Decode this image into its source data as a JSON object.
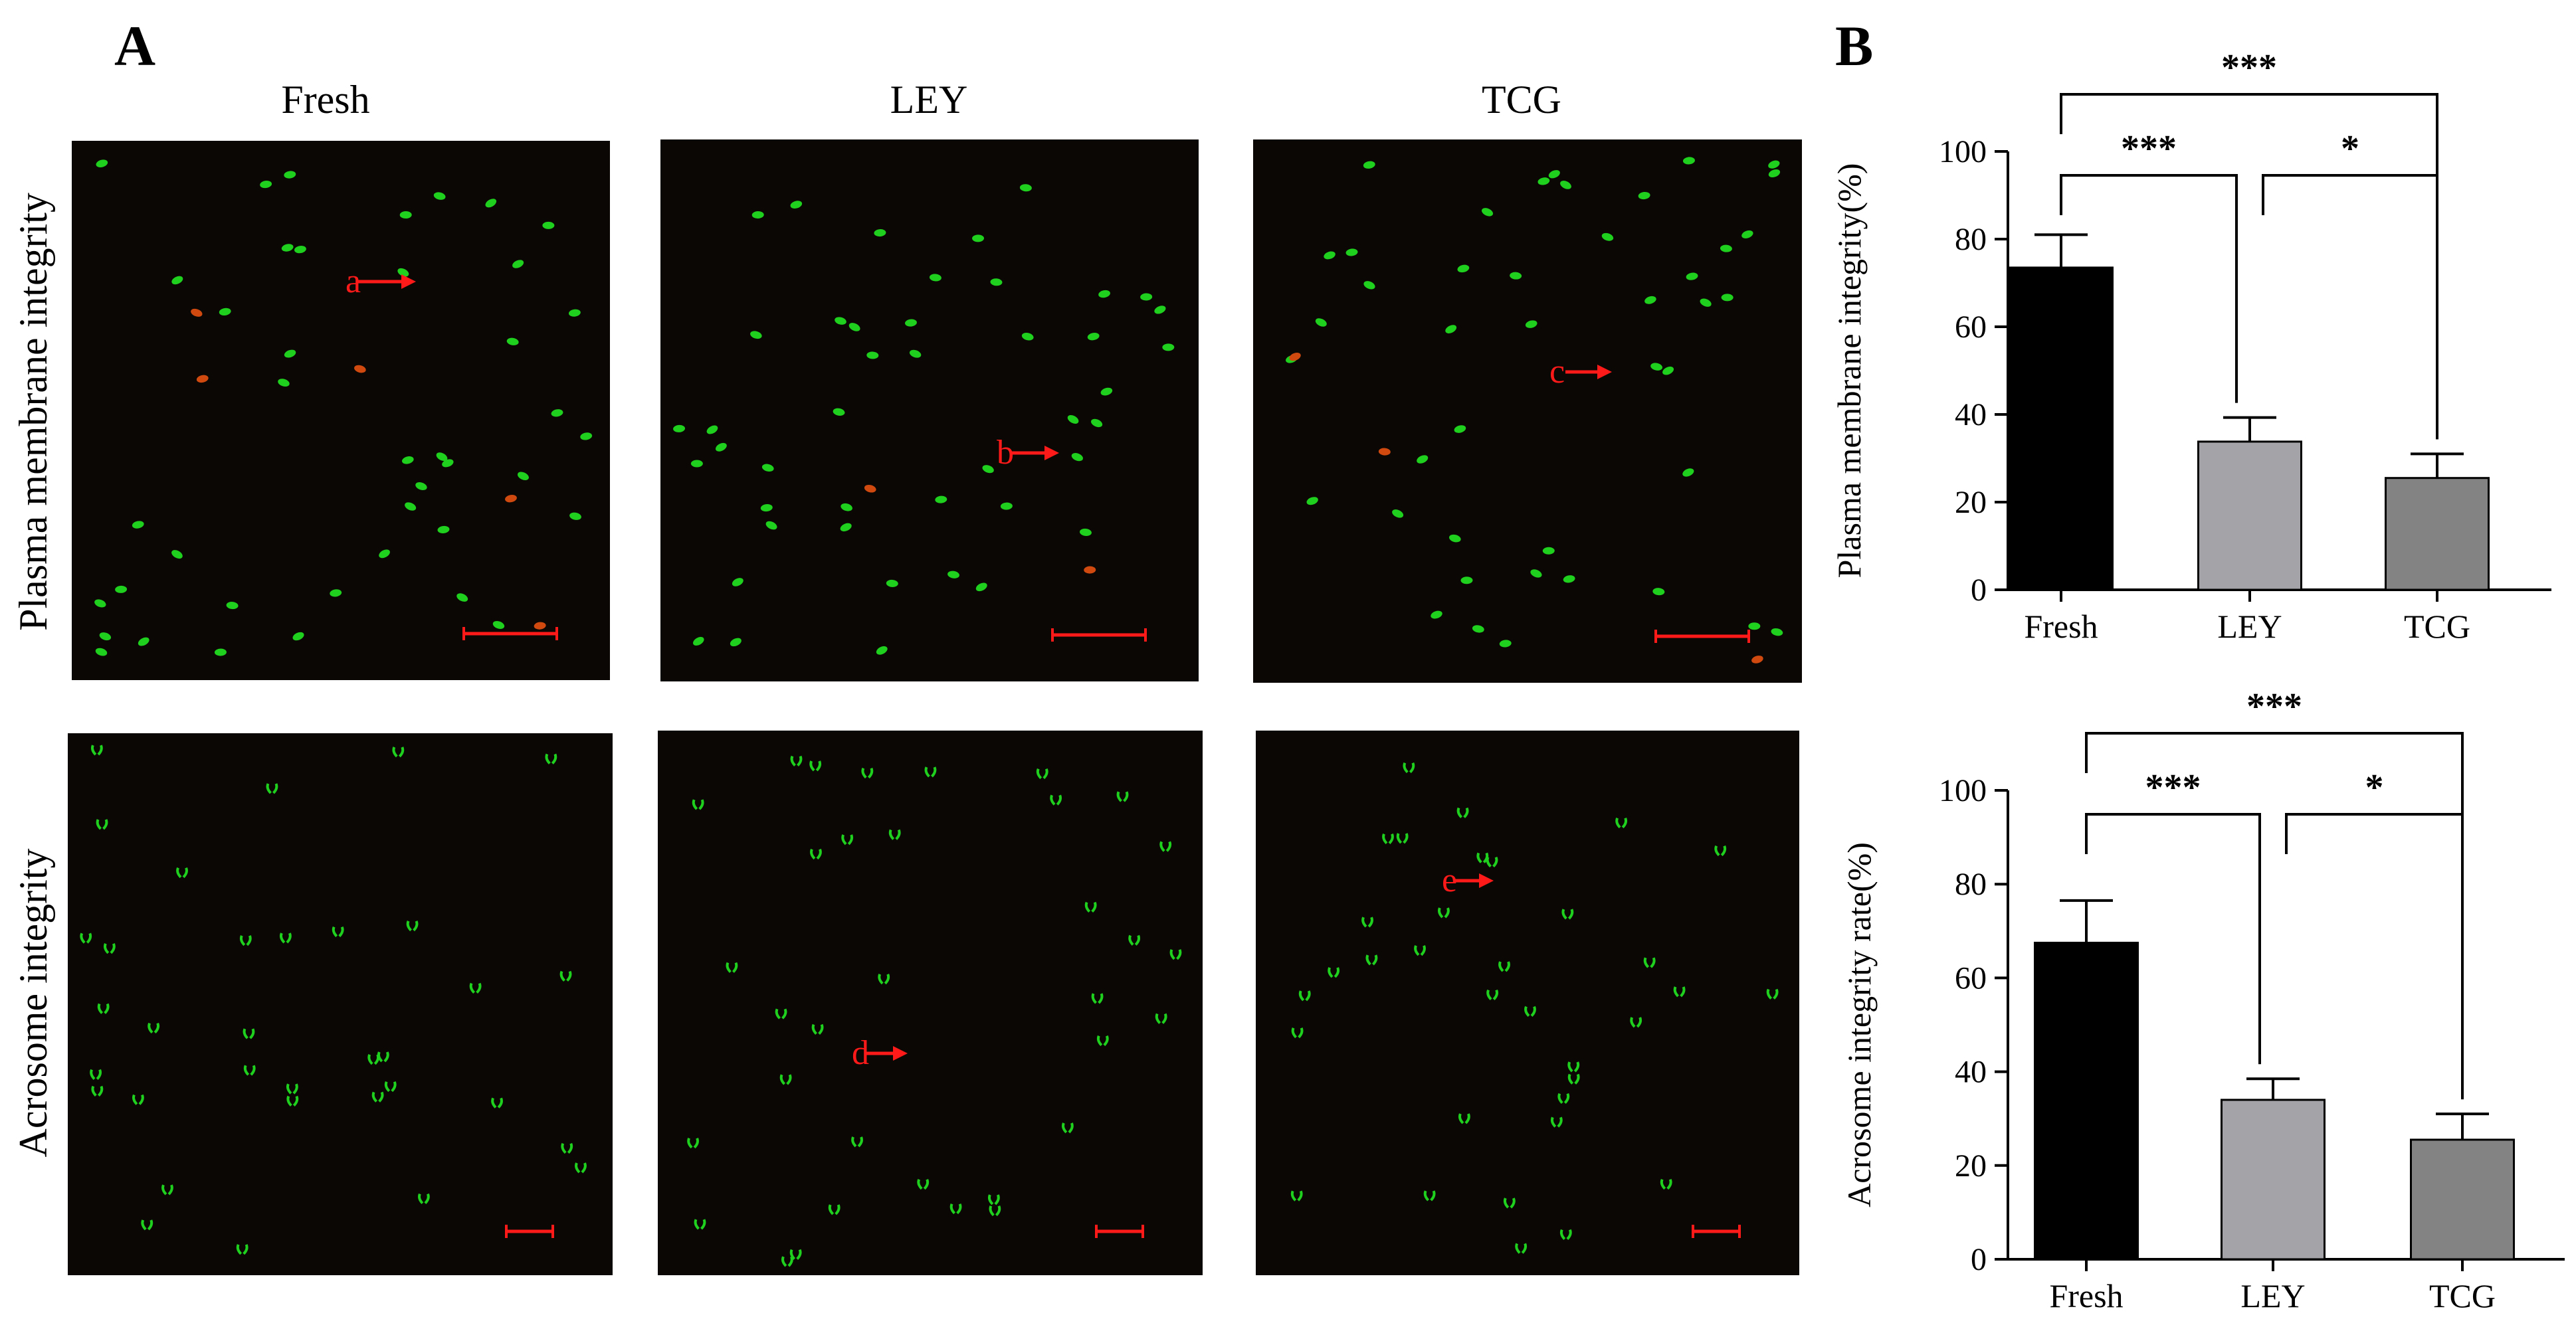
{
  "panel_labels": {
    "a": "A",
    "b": "B"
  },
  "columns": [
    "Fresh",
    "LEY",
    "TCG"
  ],
  "rows": [
    "Plasma membrane integrity",
    "Acrosome integrity"
  ],
  "micrographs": [
    {
      "row": 0,
      "col": 0,
      "arrow_label": "a"
    },
    {
      "row": 0,
      "col": 1,
      "arrow_label": "b"
    },
    {
      "row": 0,
      "col": 2,
      "arrow_label": "c"
    },
    {
      "row": 1,
      "col": 0,
      "arrow_label": ""
    },
    {
      "row": 1,
      "col": 1,
      "arrow_label": "d"
    },
    {
      "row": 1,
      "col": 2,
      "arrow_label": "e"
    }
  ],
  "colors": {
    "micrograph_bg": "#0b0705",
    "cell_green": "#1fd01f",
    "cell_red": "#d04a10",
    "annotation_red": "#ff1a1a",
    "bar_fresh": "#000000",
    "bar_ley": "#a3a3a8",
    "bar_tcg": "#838383"
  },
  "chart_data": [
    {
      "type": "bar",
      "categories": [
        "Fresh",
        "LEY",
        "TCG"
      ],
      "values": [
        73.5,
        33.8,
        25.5
      ],
      "errors": [
        7.5,
        5.5,
        5.5
      ],
      "ylabel": "Plasma membrane integrity(%)",
      "ylim": [
        0,
        100
      ],
      "yticks": [
        "0",
        "20",
        "40",
        "60",
        "80",
        "100"
      ],
      "grid": false,
      "significance": [
        {
          "pair": [
            0,
            2
          ],
          "label": "***"
        },
        {
          "pair": [
            0,
            1
          ],
          "label": "***"
        },
        {
          "pair": [
            1,
            2
          ],
          "label": "*"
        }
      ]
    },
    {
      "type": "bar",
      "categories": [
        "Fresh",
        "LEY",
        "TCG"
      ],
      "values": [
        67.5,
        34.0,
        25.5
      ],
      "errors": [
        9.0,
        4.5,
        5.5
      ],
      "ylabel": "Acrosome integrity rate(%)",
      "ylim": [
        0,
        100
      ],
      "yticks": [
        "0",
        "20",
        "40",
        "60",
        "80",
        "100"
      ],
      "grid": false,
      "significance": [
        {
          "pair": [
            0,
            2
          ],
          "label": "***"
        },
        {
          "pair": [
            0,
            1
          ],
          "label": "***"
        },
        {
          "pair": [
            1,
            2
          ],
          "label": "*"
        }
      ]
    }
  ]
}
